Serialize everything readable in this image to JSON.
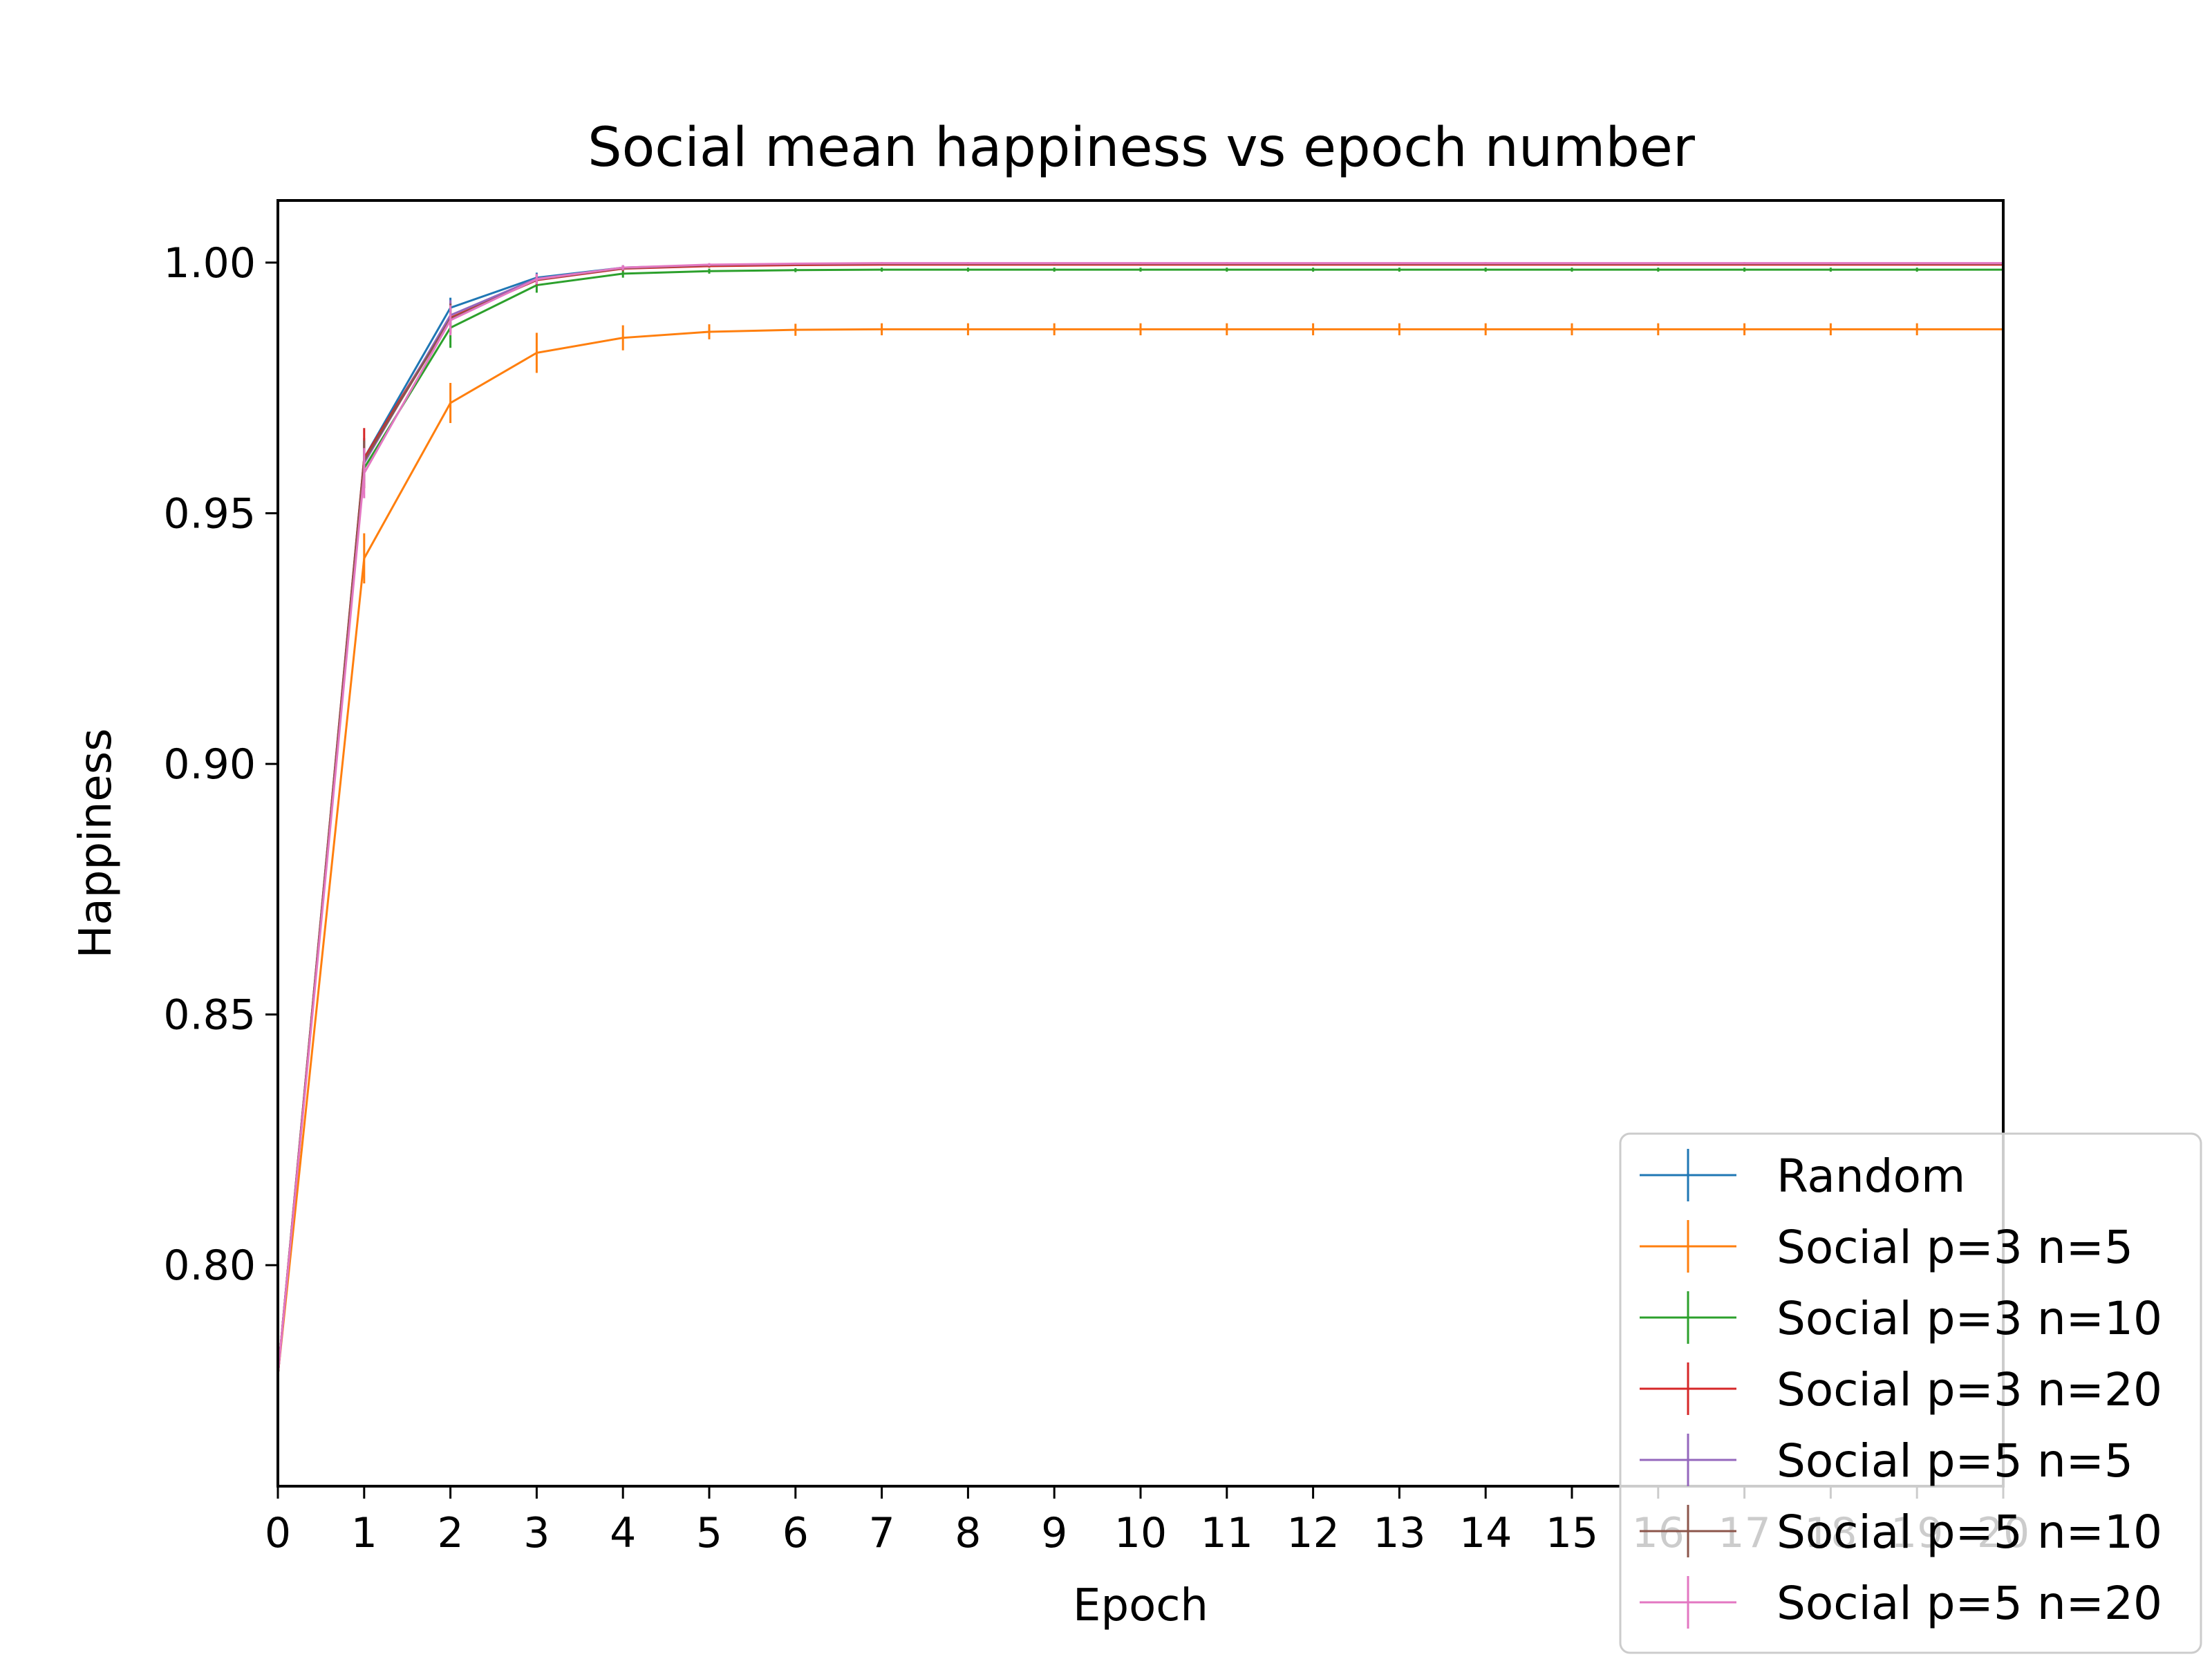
{
  "chart_data": {
    "type": "line",
    "title": "Social mean happiness vs epoch number",
    "xlabel": "Epoch",
    "ylabel": "Happiness",
    "xlim": [
      0,
      20
    ],
    "ylim": [
      0.7559,
      1.0124
    ],
    "xticks": [
      0,
      1,
      2,
      3,
      4,
      5,
      6,
      7,
      8,
      9,
      10,
      11,
      12,
      13,
      14,
      15,
      16,
      17,
      18,
      19,
      20
    ],
    "yticks": [
      0.8,
      0.85,
      0.9,
      0.95,
      1.0
    ],
    "grid": false,
    "legend_position": "bottom-right",
    "x": [
      0,
      1,
      2,
      3,
      4,
      5,
      6,
      7,
      8,
      9,
      10,
      11,
      12,
      13,
      14,
      15,
      16,
      17,
      18,
      19,
      20
    ],
    "series": [
      {
        "name": "Random",
        "color": "#1f77b4",
        "values": [
          0.778,
          0.961,
          0.991,
          0.997,
          0.999,
          0.9995,
          0.9997,
          0.9998,
          0.9998,
          0.9998,
          0.9998,
          0.9998,
          0.9998,
          0.9998,
          0.9998,
          0.9998,
          0.9998,
          0.9998,
          0.9998,
          0.9998,
          0.9998
        ],
        "errors": [
          0.001,
          0.004,
          0.002,
          0.001,
          0.0005,
          0.0003,
          0.0002,
          0.0002,
          0.0002,
          0.0002,
          0.0002,
          0.0002,
          0.0002,
          0.0002,
          0.0002,
          0.0002,
          0.0002,
          0.0002,
          0.0002,
          0.0002,
          0.0002
        ]
      },
      {
        "name": "Social p=3 n=5",
        "color": "#ff7f0e",
        "values": [
          0.778,
          0.941,
          0.972,
          0.982,
          0.985,
          0.9862,
          0.9866,
          0.9867,
          0.9867,
          0.9867,
          0.9867,
          0.9867,
          0.9867,
          0.9867,
          0.9867,
          0.9867,
          0.9867,
          0.9867,
          0.9867,
          0.9867,
          0.9867
        ],
        "errors": [
          0.001,
          0.005,
          0.004,
          0.004,
          0.0025,
          0.0015,
          0.0012,
          0.0012,
          0.0012,
          0.0012,
          0.0012,
          0.0012,
          0.0012,
          0.0012,
          0.0012,
          0.0012,
          0.0012,
          0.0012,
          0.0012,
          0.0012,
          0.0012
        ]
      },
      {
        "name": "Social p=3 n=10",
        "color": "#2ca02c",
        "values": [
          0.778,
          0.959,
          0.987,
          0.9955,
          0.9978,
          0.9983,
          0.9985,
          0.9986,
          0.9986,
          0.9986,
          0.9986,
          0.9986,
          0.9986,
          0.9986,
          0.9986,
          0.9986,
          0.9986,
          0.9986,
          0.9986,
          0.9986,
          0.9986
        ],
        "errors": [
          0.001,
          0.004,
          0.004,
          0.0015,
          0.0008,
          0.0005,
          0.0004,
          0.0004,
          0.0004,
          0.0004,
          0.0004,
          0.0004,
          0.0004,
          0.0004,
          0.0004,
          0.0004,
          0.0004,
          0.0004,
          0.0004,
          0.0004,
          0.0004
        ]
      },
      {
        "name": "Social p=3 n=20",
        "color": "#d62728",
        "values": [
          0.778,
          0.961,
          0.989,
          0.9965,
          0.9988,
          0.9993,
          0.9995,
          0.9996,
          0.9996,
          0.9996,
          0.9996,
          0.9996,
          0.9996,
          0.9996,
          0.9996,
          0.9996,
          0.9996,
          0.9996,
          0.9996,
          0.9996,
          0.9996
        ],
        "errors": [
          0.001,
          0.006,
          0.003,
          0.001,
          0.0005,
          0.0003,
          0.0002,
          0.0002,
          0.0002,
          0.0002,
          0.0002,
          0.0002,
          0.0002,
          0.0002,
          0.0002,
          0.0002,
          0.0002,
          0.0002,
          0.0002,
          0.0002,
          0.0002
        ]
      },
      {
        "name": "Social p=5 n=5",
        "color": "#9467bd",
        "values": [
          0.778,
          0.96,
          0.9895,
          0.9968,
          0.9989,
          0.9995,
          0.9997,
          0.9998,
          0.9998,
          0.9998,
          0.9998,
          0.9998,
          0.9998,
          0.9998,
          0.9998,
          0.9998,
          0.9998,
          0.9998,
          0.9998,
          0.9998,
          0.9998
        ],
        "errors": [
          0.001,
          0.004,
          0.003,
          0.001,
          0.0005,
          0.0003,
          0.0002,
          0.0002,
          0.0002,
          0.0002,
          0.0002,
          0.0002,
          0.0002,
          0.0002,
          0.0002,
          0.0002,
          0.0002,
          0.0002,
          0.0002,
          0.0002,
          0.0002
        ]
      },
      {
        "name": "Social p=5 n=10",
        "color": "#8c564b",
        "values": [
          0.778,
          0.9605,
          0.9888,
          0.9966,
          0.9989,
          0.9995,
          0.9997,
          0.9998,
          0.9998,
          0.9998,
          0.9998,
          0.9998,
          0.9998,
          0.9998,
          0.9998,
          0.9998,
          0.9998,
          0.9998,
          0.9998,
          0.9998,
          0.9998
        ],
        "errors": [
          0.001,
          0.004,
          0.003,
          0.001,
          0.0005,
          0.0003,
          0.0002,
          0.0002,
          0.0002,
          0.0002,
          0.0002,
          0.0002,
          0.0002,
          0.0002,
          0.0002,
          0.0002,
          0.0002,
          0.0002,
          0.0002,
          0.0002,
          0.0002
        ]
      },
      {
        "name": "Social p=5 n=20",
        "color": "#e377c2",
        "values": [
          0.778,
          0.958,
          0.9885,
          0.9967,
          0.999,
          0.9996,
          0.9998,
          0.9999,
          0.9999,
          0.9999,
          0.9999,
          0.9999,
          0.9999,
          0.9999,
          0.9999,
          0.9999,
          0.9999,
          0.9999,
          0.9999,
          0.9999,
          0.9999
        ],
        "errors": [
          0.001,
          0.005,
          0.003,
          0.001,
          0.0005,
          0.0003,
          0.0002,
          0.0002,
          0.0002,
          0.0002,
          0.0002,
          0.0002,
          0.0002,
          0.0002,
          0.0002,
          0.0002,
          0.0002,
          0.0002,
          0.0002,
          0.0002,
          0.0002
        ]
      }
    ]
  }
}
